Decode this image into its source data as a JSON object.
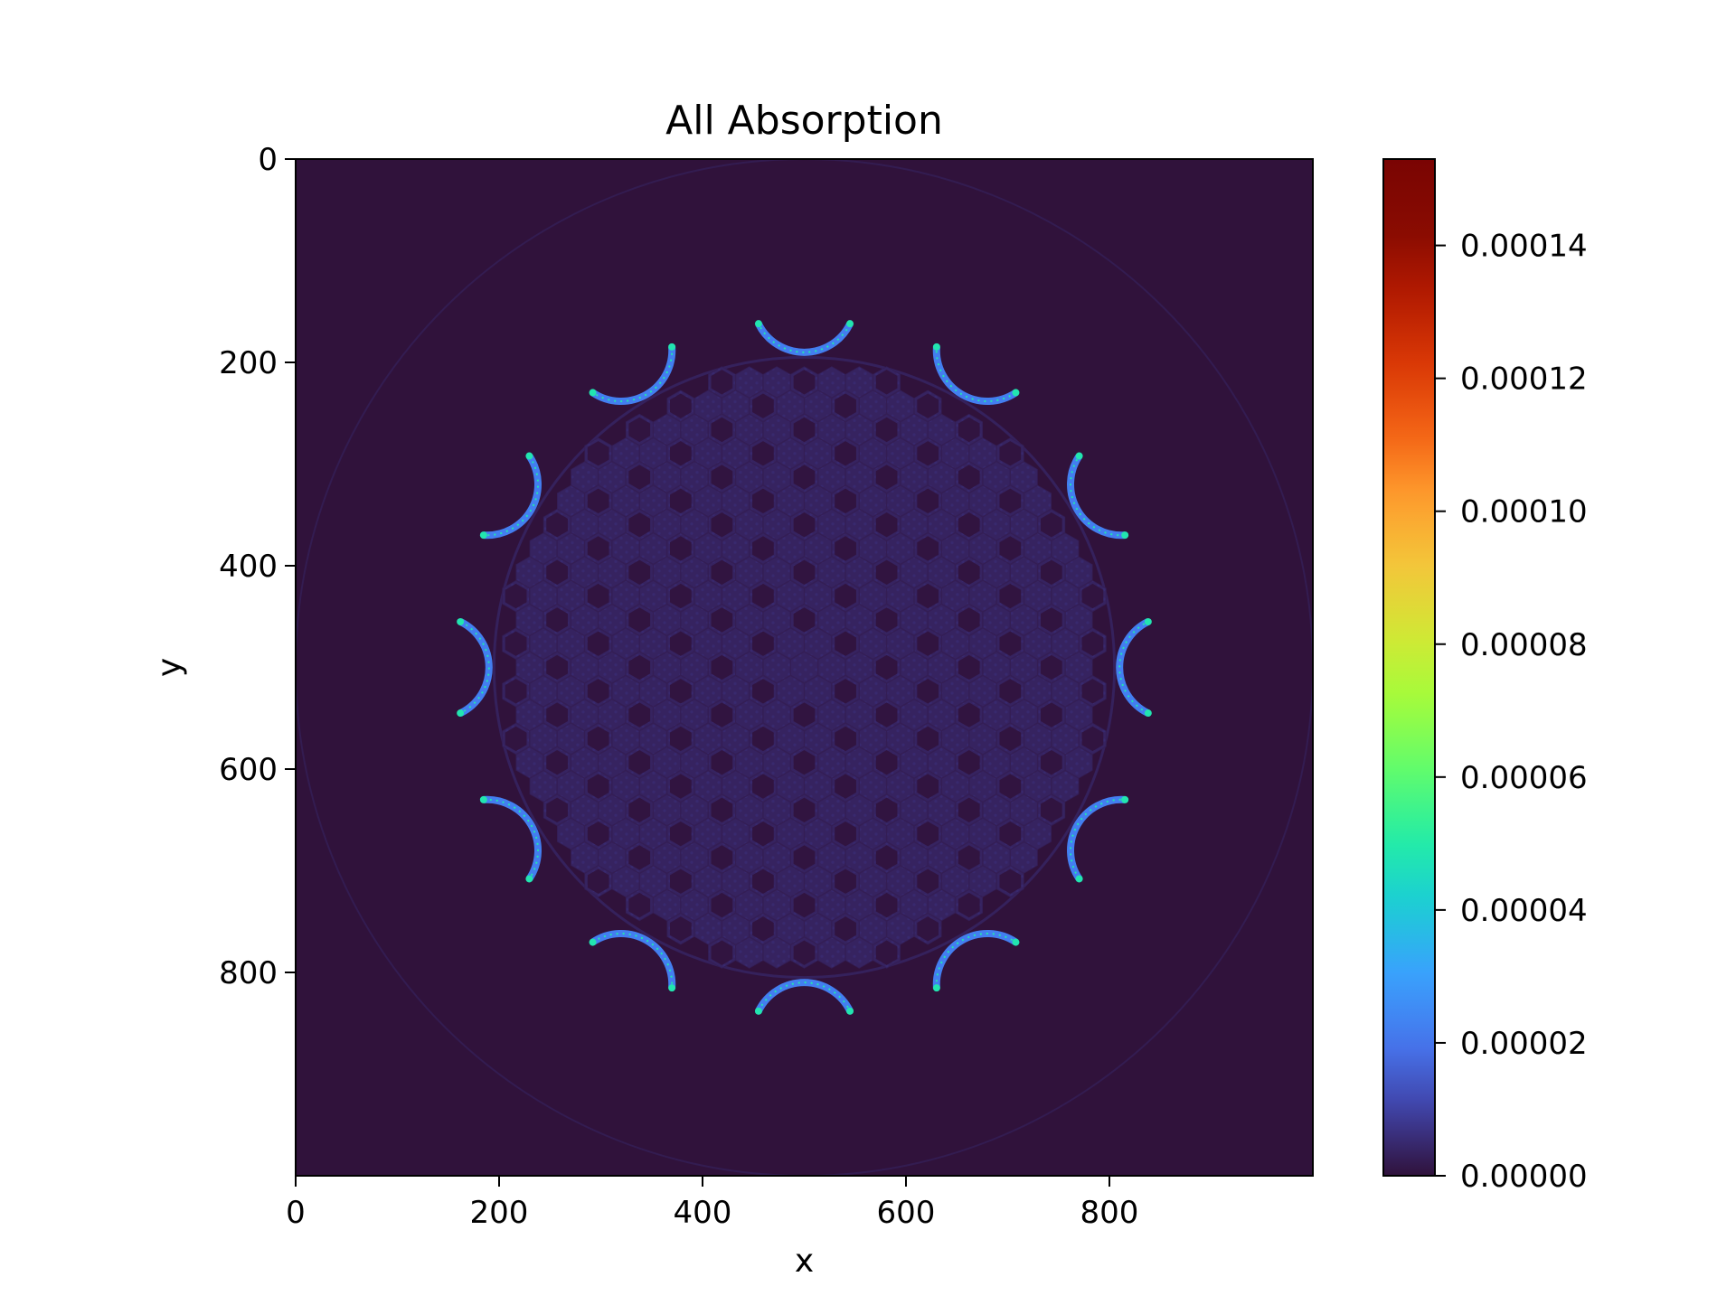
{
  "chart_data": {
    "type": "heatmap",
    "title": "All Absorption",
    "xlabel": "x",
    "ylabel": "y",
    "xlim": [
      0,
      1000
    ],
    "ylim": [
      1000,
      0
    ],
    "x_ticks": [
      0,
      200,
      400,
      600,
      800
    ],
    "y_ticks": [
      0,
      200,
      400,
      600,
      800
    ],
    "x_tick_labels": [
      "0",
      "200",
      "400",
      "600",
      "800"
    ],
    "y_tick_labels": [
      "0",
      "200",
      "400",
      "600",
      "800"
    ],
    "colormap": "turbo",
    "background_color": "#30123b",
    "colorbar": {
      "min": 0.0,
      "max": 0.000153,
      "ticks": [
        0.0,
        2e-05,
        4e-05,
        6e-05,
        8e-05,
        0.0001,
        0.00012,
        0.00014
      ],
      "tick_labels": [
        "0.00000",
        "0.00002",
        "0.00004",
        "0.00006",
        "0.00008",
        "0.00010",
        "0.00012",
        "0.00014"
      ]
    },
    "core": {
      "center": [
        500,
        500
      ],
      "vessel_radius": 305,
      "outer_ring_radius": 500,
      "fuel_value": 3.5e-06,
      "hole_value": 5e-07,
      "spacing": 27,
      "extent_radius": 295
    },
    "control_arcs": {
      "count": 12,
      "orbit_radius": 360,
      "arc_radius": 50,
      "arc_half_angle_deg": 64,
      "value": 2.2e-05
    },
    "grid": false,
    "legend": "none"
  }
}
